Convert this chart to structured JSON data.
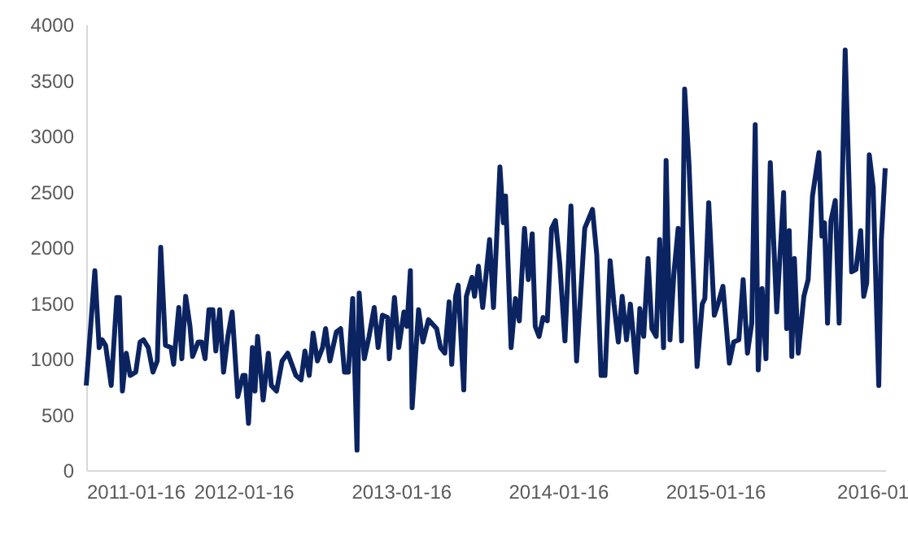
{
  "chart_data": {
    "type": "line",
    "x": [
      "2011-01-16",
      "2011-02-05",
      "2011-02-15",
      "2011-02-22",
      "2011-03-02",
      "2011-03-15",
      "2011-03-28",
      "2011-04-03",
      "2011-04-10",
      "2011-04-19",
      "2011-04-28",
      "2011-05-11",
      "2011-05-21",
      "2011-05-29",
      "2011-06-09",
      "2011-06-20",
      "2011-06-30",
      "2011-07-08",
      "2011-07-19",
      "2011-08-01",
      "2011-08-07",
      "2011-08-19",
      "2011-08-26",
      "2011-09-04",
      "2011-09-14",
      "2011-09-20",
      "2011-10-03",
      "2011-10-11",
      "2011-10-19",
      "2011-10-28",
      "2011-11-06",
      "2011-11-13",
      "2011-11-22",
      "2011-12-01",
      "2011-12-11",
      "2011-12-21",
      "2012-01-03",
      "2012-01-15",
      "2012-01-20",
      "2012-01-28",
      "2012-02-06",
      "2012-02-12",
      "2012-02-18",
      "2012-03-02",
      "2012-03-14",
      "2012-03-21",
      "2012-04-02",
      "2012-04-15",
      "2012-04-28",
      "2012-05-17",
      "2012-05-29",
      "2012-06-07",
      "2012-06-17",
      "2012-06-26",
      "2012-07-06",
      "2012-07-18",
      "2012-07-25",
      "2012-08-04",
      "2012-08-19",
      "2012-08-29",
      "2012-09-07",
      "2012-09-16",
      "2012-09-26",
      "2012-10-06",
      "2012-10-11",
      "2012-10-23",
      "2012-11-03",
      "2012-11-15",
      "2012-11-24",
      "2012-12-04",
      "2012-12-16",
      "2012-12-20",
      "2013-01-01",
      "2013-01-11",
      "2013-01-23",
      "2013-01-30",
      "2013-02-07",
      "2013-02-11",
      "2013-02-26",
      "2013-03-08",
      "2013-03-21",
      "2013-04-09",
      "2013-04-18",
      "2013-04-28",
      "2013-05-08",
      "2013-05-14",
      "2013-05-23",
      "2013-05-29",
      "2013-06-11",
      "2013-06-17",
      "2013-06-30",
      "2013-07-06",
      "2013-07-15",
      "2013-07-25",
      "2013-08-10",
      "2013-08-19",
      "2013-09-03",
      "2013-09-11",
      "2013-09-16",
      "2013-09-29",
      "2013-10-09",
      "2013-10-18",
      "2013-10-30",
      "2013-11-08",
      "2013-11-17",
      "2013-11-24",
      "2013-12-03",
      "2013-12-12",
      "2013-12-22",
      "2014-01-01",
      "2014-01-10",
      "2014-01-20",
      "2014-02-01",
      "2014-02-15",
      "2014-02-28",
      "2014-03-19",
      "2014-04-06",
      "2014-04-16",
      "2014-04-26",
      "2014-05-05",
      "2014-05-17",
      "2014-05-26",
      "2014-06-05",
      "2014-06-14",
      "2014-06-24",
      "2014-07-03",
      "2014-07-10",
      "2014-07-17",
      "2014-07-25",
      "2014-08-03",
      "2014-08-13",
      "2014-08-22",
      "2014-09-01",
      "2014-09-09",
      "2014-09-18",
      "2014-09-24",
      "2014-10-03",
      "2014-10-12",
      "2014-10-22",
      "2014-10-30",
      "2014-11-06",
      "2014-11-16",
      "2014-11-26",
      "2014-12-05",
      "2014-12-17",
      "2014-12-23",
      "2015-01-01",
      "2015-01-14",
      "2015-01-24",
      "2015-02-03",
      "2015-02-18",
      "2015-02-28",
      "2015-03-12",
      "2015-03-22",
      "2015-04-01",
      "2015-04-11",
      "2015-04-19",
      "2015-04-26",
      "2015-05-05",
      "2015-05-14",
      "2015-05-24",
      "2015-06-08",
      "2015-06-24",
      "2015-07-01",
      "2015-07-07",
      "2015-07-13",
      "2015-07-19",
      "2015-07-28",
      "2015-08-10",
      "2015-08-20",
      "2015-08-30",
      "2015-09-14",
      "2015-09-21",
      "2015-09-27",
      "2015-10-04",
      "2015-10-12",
      "2015-10-22",
      "2015-10-31",
      "2015-11-14",
      "2015-11-29",
      "2015-12-09",
      "2015-12-20",
      "2015-12-27",
      "2016-01-03",
      "2016-01-09",
      "2016-01-18",
      "2016-01-31",
      "2016-02-06",
      "2016-02-15"
    ],
    "series": [
      {
        "color": "#0b2461",
        "values": [
          760,
          1790,
          1100,
          1170,
          1120,
          760,
          1550,
          1550,
          710,
          1050,
          850,
          880,
          1150,
          1170,
          1100,
          880,
          980,
          2000,
          1120,
          1100,
          950,
          1460,
          1000,
          1560,
          1290,
          1020,
          1150,
          1150,
          1000,
          1440,
          1440,
          1070,
          1440,
          880,
          1200,
          1420,
          660,
          850,
          850,
          420,
          1100,
          710,
          1200,
          630,
          1050,
          760,
          710,
          980,
          1050,
          850,
          810,
          1070,
          850,
          1230,
          980,
          1100,
          1270,
          980,
          1240,
          1270,
          880,
          880,
          1540,
          180,
          1590,
          1000,
          1200,
          1460,
          1100,
          1390,
          1370,
          1000,
          1550,
          1100,
          1420,
          1290,
          1790,
          560,
          1440,
          1150,
          1350,
          1270,
          1100,
          1050,
          1510,
          950,
          1560,
          1660,
          720,
          1560,
          1730,
          1560,
          1830,
          1460,
          2070,
          1460,
          2720,
          2220,
          2460,
          1100,
          1540,
          1340,
          2170,
          1710,
          2120,
          1290,
          1200,
          1370,
          1340,
          2170,
          2240,
          1850,
          1160,
          2370,
          980,
          2170,
          2340,
          1930,
          850,
          850,
          1880,
          1490,
          1150,
          1560,
          1170,
          1490,
          1200,
          880,
          1450,
          1200,
          1900,
          1270,
          1200,
          2070,
          1100,
          2780,
          1170,
          1760,
          2170,
          1160,
          3420,
          2760,
          1780,
          930,
          1490,
          1540,
          2400,
          1390,
          1510,
          1650,
          960,
          1150,
          1170,
          1710,
          1050,
          1320,
          3100,
          900,
          1630,
          1000,
          2760,
          1420,
          2490,
          1270,
          2150,
          1020,
          1900,
          1050,
          1560,
          1710,
          2460,
          2850,
          2100,
          2220,
          1320,
          2240,
          2420,
          1320,
          3770,
          1780,
          1800,
          2150,
          1560,
          1680,
          2830,
          2540,
          760,
          2070,
          2710
        ]
      }
    ],
    "xlim": [
      "2011-01-16",
      "2016-02-15"
    ],
    "xticks": [
      "2011-01-16",
      "2012-01-16",
      "2013-01-16",
      "2014-01-16",
      "2015-01-16",
      {
        "value": "2016-01-16",
        "label": "2016-01"
      }
    ],
    "ylim": [
      0,
      4000
    ],
    "yticks": [
      0,
      500,
      1000,
      1500,
      2000,
      2500,
      3000,
      3500,
      4000
    ],
    "grid": false,
    "marker": "none",
    "line_style": "solid"
  }
}
